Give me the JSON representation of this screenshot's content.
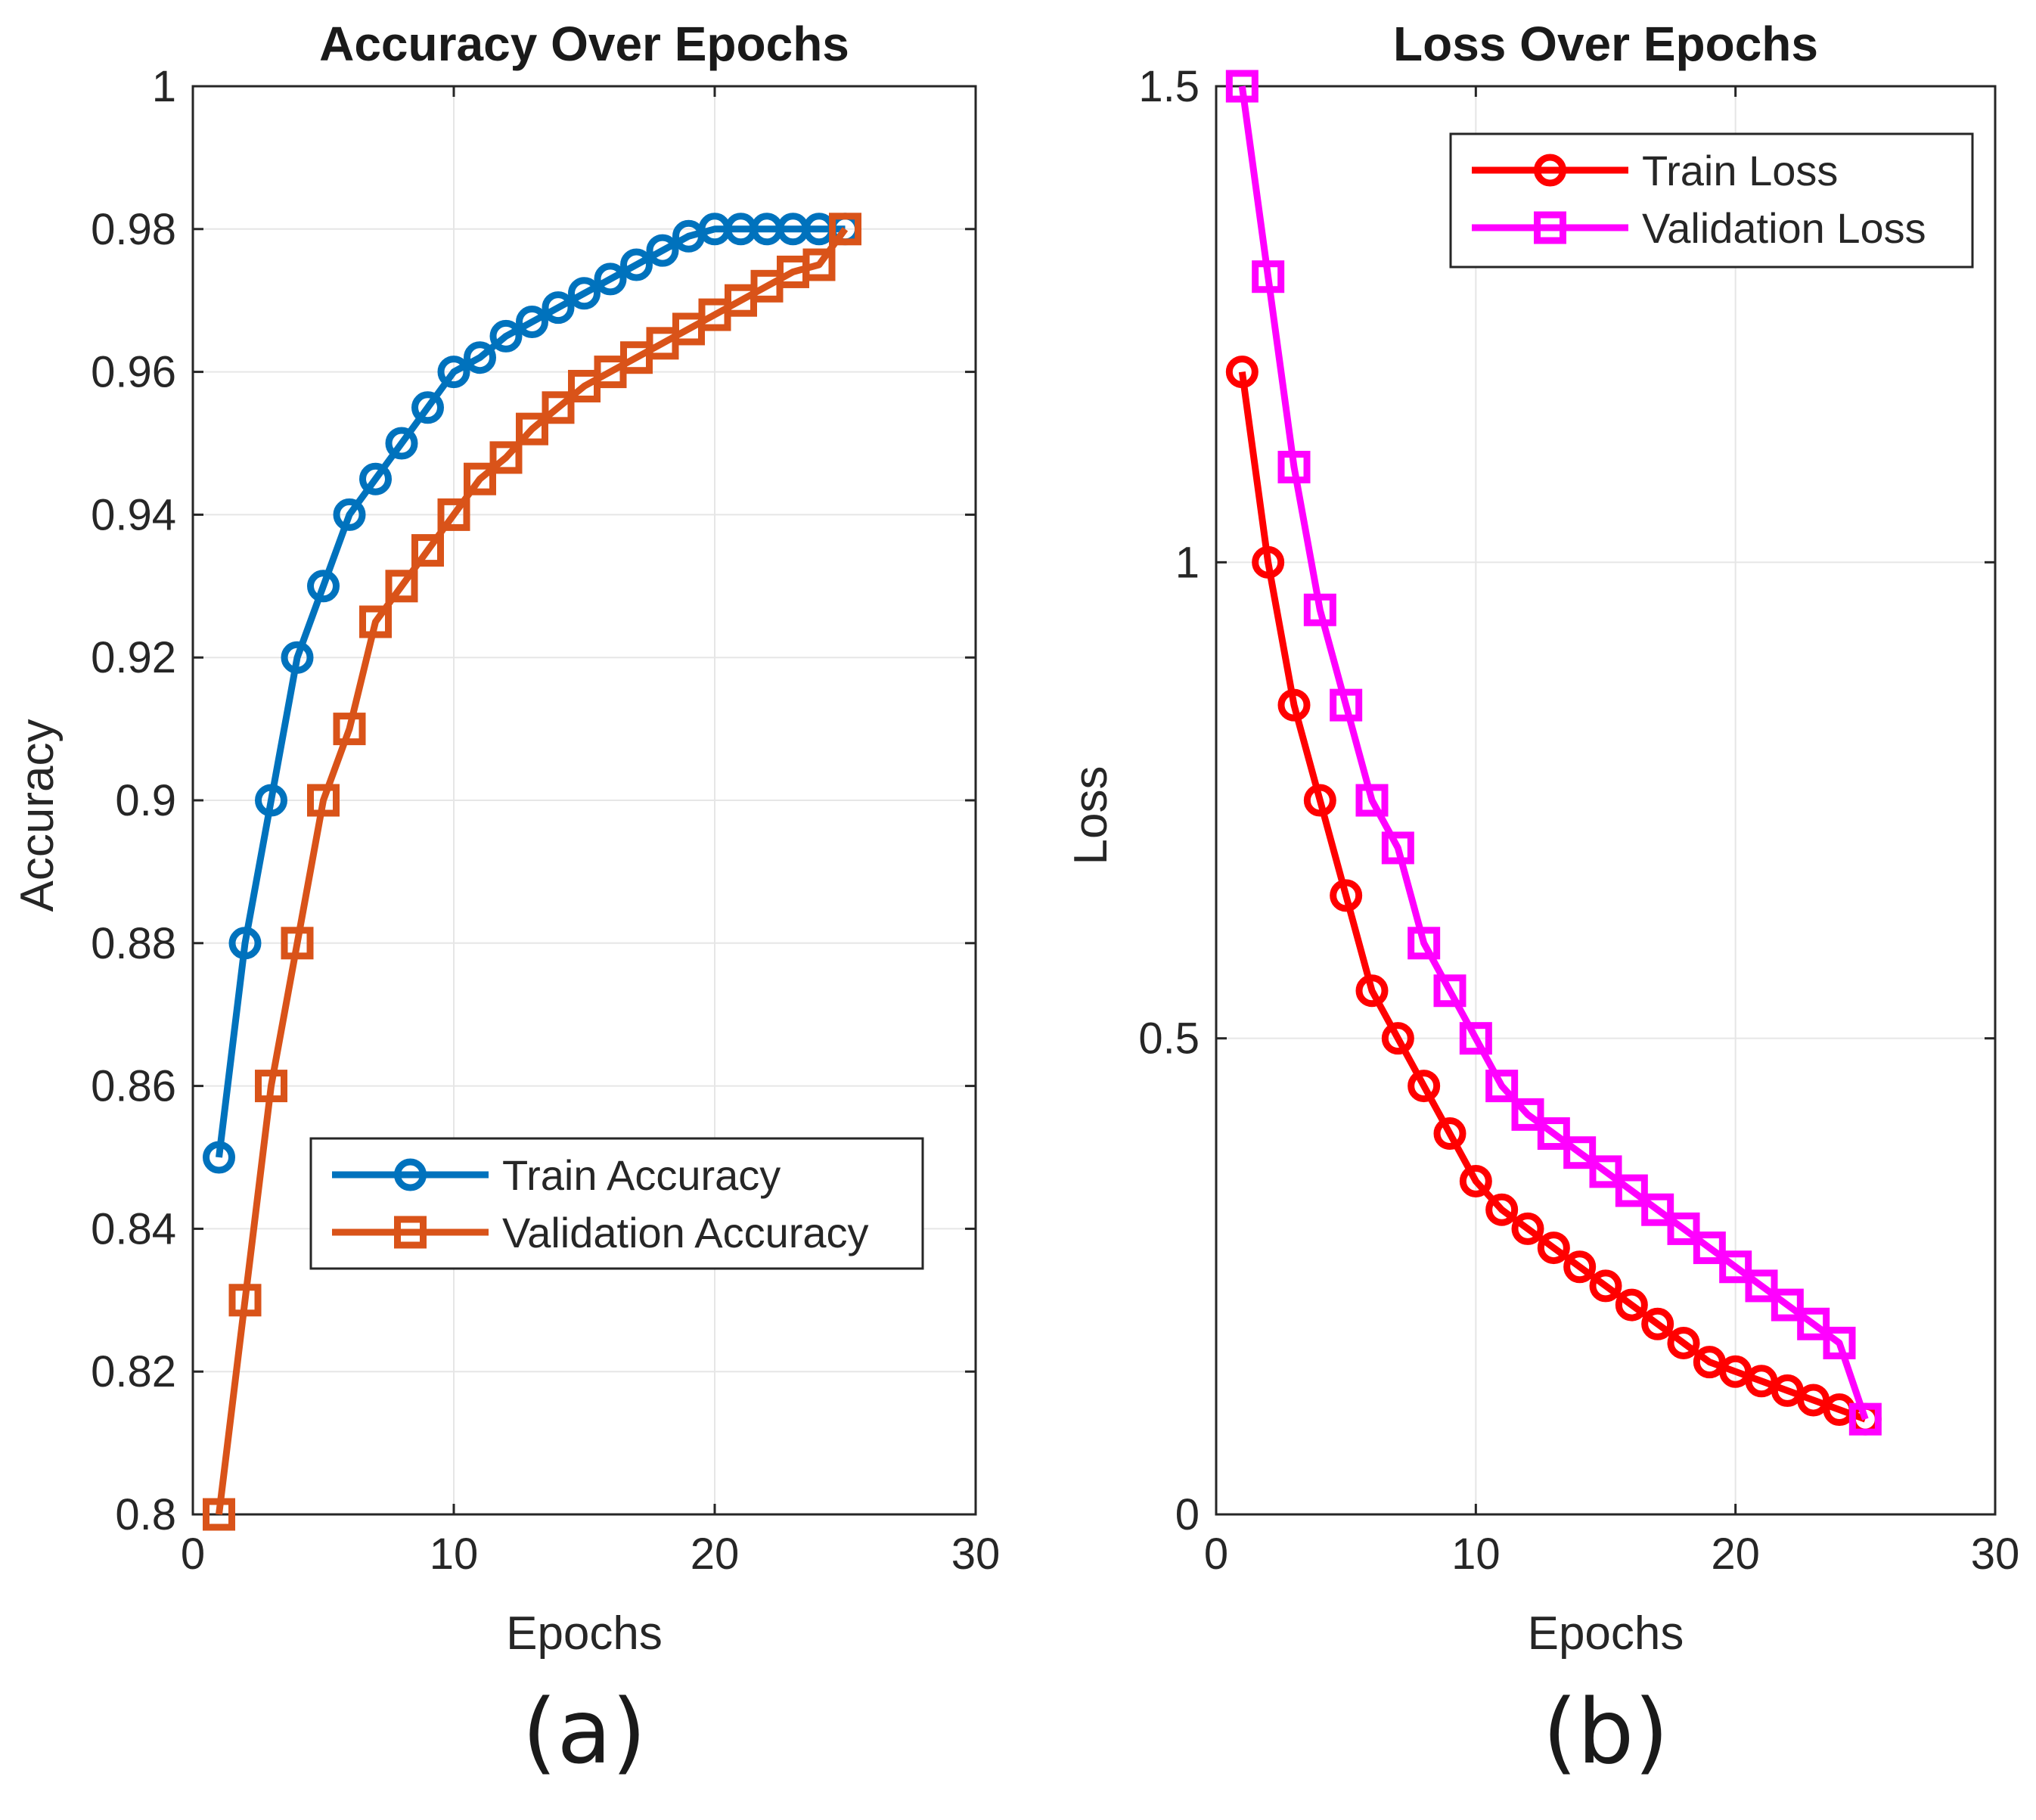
{
  "chart_data": [
    {
      "type": "line",
      "title": "Accuracy Over Epochs",
      "xlabel": "Epochs",
      "ylabel": "Accuracy",
      "caption": "(a)",
      "xlim": [
        0,
        30
      ],
      "ylim": [
        0.8,
        1
      ],
      "xticks": [
        0,
        10,
        20,
        30
      ],
      "xtick_labels": [
        "0",
        "10",
        "20",
        "30"
      ],
      "yticks": [
        0.8,
        0.82,
        0.84,
        0.86,
        0.88,
        0.9,
        0.92,
        0.94,
        0.96,
        0.98,
        1
      ],
      "ytick_labels": [
        "0.8",
        "0.82",
        "0.84",
        "0.86",
        "0.88",
        "0.9",
        "0.92",
        "0.94",
        "0.96",
        "0.98",
        "1"
      ],
      "grid": true,
      "legend_position": "lower-right",
      "x": [
        1,
        2,
        3,
        4,
        5,
        6,
        7,
        8,
        9,
        10,
        11,
        12,
        13,
        14,
        15,
        16,
        17,
        18,
        19,
        20,
        21,
        22,
        23,
        24,
        25
      ],
      "series": [
        {
          "name": "Train Accuracy",
          "color": "#0072bd",
          "marker": "circle",
          "values": [
            0.85,
            0.88,
            0.9,
            0.92,
            0.93,
            0.94,
            0.945,
            0.95,
            0.955,
            0.96,
            0.962,
            0.965,
            0.967,
            0.969,
            0.971,
            0.973,
            0.975,
            0.977,
            0.979,
            0.98,
            0.98,
            0.98,
            0.98,
            0.98,
            0.98
          ]
        },
        {
          "name": "Validation Accuracy",
          "color": "#d95319",
          "marker": "square",
          "values": [
            0.8,
            0.83,
            0.86,
            0.88,
            0.9,
            0.91,
            0.925,
            0.93,
            0.935,
            0.94,
            0.945,
            0.948,
            0.952,
            0.955,
            0.958,
            0.96,
            0.962,
            0.964,
            0.966,
            0.968,
            0.97,
            0.972,
            0.974,
            0.975,
            0.98
          ]
        }
      ]
    },
    {
      "type": "line",
      "title": "Loss Over Epochs",
      "xlabel": "Epochs",
      "ylabel": "Loss",
      "caption": "(b)",
      "xlim": [
        0,
        30
      ],
      "ylim": [
        0,
        1.5
      ],
      "xticks": [
        0,
        10,
        20,
        30
      ],
      "xtick_labels": [
        "0",
        "10",
        "20",
        "30"
      ],
      "yticks": [
        0,
        0.5,
        1,
        1.5
      ],
      "ytick_labels": [
        "0",
        "0.5",
        "1",
        "1.5"
      ],
      "grid": true,
      "legend_position": "top-right",
      "x": [
        1,
        2,
        3,
        4,
        5,
        6,
        7,
        8,
        9,
        10,
        11,
        12,
        13,
        14,
        15,
        16,
        17,
        18,
        19,
        20,
        21,
        22,
        23,
        24,
        25
      ],
      "series": [
        {
          "name": "Train Loss",
          "color": "#ff0000",
          "marker": "circle",
          "values": [
            1.2,
            1.0,
            0.85,
            0.75,
            0.65,
            0.55,
            0.5,
            0.45,
            0.4,
            0.35,
            0.32,
            0.3,
            0.28,
            0.26,
            0.24,
            0.22,
            0.2,
            0.18,
            0.16,
            0.15,
            0.14,
            0.13,
            0.12,
            0.11,
            0.1
          ]
        },
        {
          "name": "Validation Loss",
          "color": "#ff00ff",
          "marker": "square",
          "values": [
            1.5,
            1.3,
            1.1,
            0.95,
            0.85,
            0.75,
            0.7,
            0.6,
            0.55,
            0.5,
            0.45,
            0.42,
            0.4,
            0.38,
            0.36,
            0.34,
            0.32,
            0.3,
            0.28,
            0.26,
            0.24,
            0.22,
            0.2,
            0.18,
            0.1
          ]
        }
      ]
    }
  ]
}
